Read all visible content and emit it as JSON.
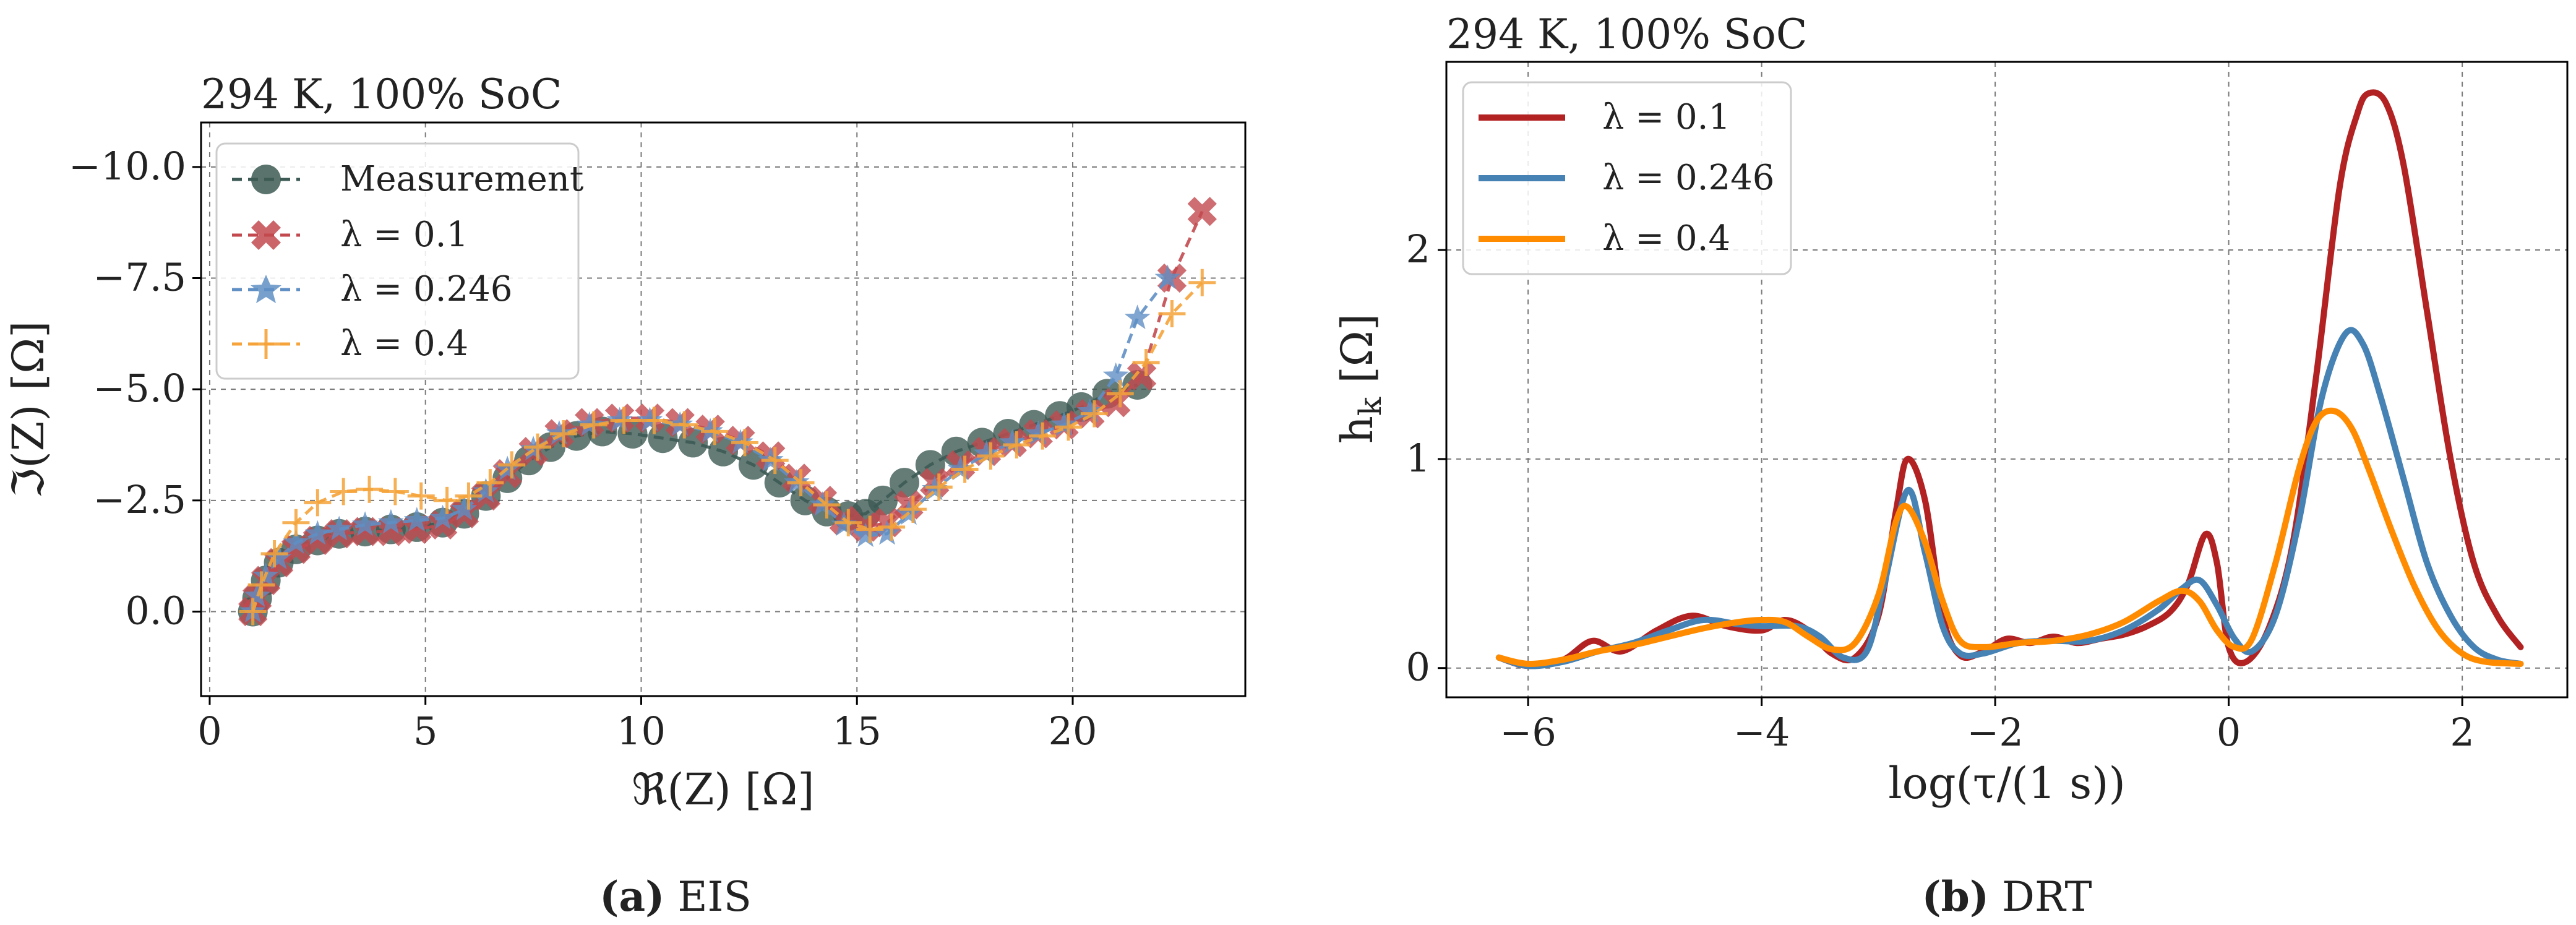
{
  "chart_data": [
    {
      "panel": "a",
      "type": "scatter",
      "title": "294 K, 100% SoC",
      "xlabel": "ℜ(Z) [Ω]",
      "ylabel": "ℑ(Z) [Ω]",
      "xlim": [
        -0.2,
        24.0
      ],
      "ylim": [
        1.9,
        -11.0
      ],
      "y_inverted": true,
      "grid": true,
      "xticks": [
        0,
        5,
        10,
        15,
        20
      ],
      "xtick_labels": [
        "0",
        "5",
        "10",
        "15",
        "20"
      ],
      "yticks": [
        0.0,
        -2.5,
        -5.0,
        -7.5,
        -10.0
      ],
      "ytick_labels": [
        "0.0",
        "−2.5",
        "−5.0",
        "−7.5",
        "−10.0"
      ],
      "legend_position": "upper-left",
      "series": [
        {
          "name": "Measurement",
          "marker": "circle",
          "color": "#3d5a54",
          "x": [
            1.0,
            1.1,
            1.3,
            1.6,
            2.0,
            2.5,
            3.0,
            3.6,
            4.2,
            4.8,
            5.4,
            5.9,
            6.4,
            6.9,
            7.4,
            7.9,
            8.5,
            9.1,
            9.8,
            10.5,
            11.2,
            11.9,
            12.6,
            13.2,
            13.8,
            14.3,
            14.8,
            15.2,
            15.6,
            16.1,
            16.7,
            17.3,
            17.9,
            18.5,
            19.1,
            19.7,
            20.2,
            20.8,
            21.5
          ],
          "y": [
            0.0,
            -0.3,
            -0.7,
            -1.1,
            -1.4,
            -1.6,
            -1.75,
            -1.8,
            -1.85,
            -1.9,
            -2.0,
            -2.2,
            -2.6,
            -3.0,
            -3.4,
            -3.7,
            -3.95,
            -4.05,
            -4.0,
            -3.9,
            -3.8,
            -3.6,
            -3.3,
            -2.9,
            -2.5,
            -2.25,
            -2.15,
            -2.2,
            -2.5,
            -2.9,
            -3.3,
            -3.6,
            -3.8,
            -4.0,
            -4.2,
            -4.4,
            -4.6,
            -4.9,
            -5.1
          ]
        },
        {
          "name": "λ = 0.1",
          "marker": "x",
          "color": "#c24a4f",
          "x": [
            1.0,
            1.1,
            1.3,
            1.6,
            2.0,
            2.5,
            3.0,
            3.6,
            4.2,
            4.8,
            5.4,
            5.9,
            6.4,
            6.9,
            7.5,
            8.1,
            8.8,
            9.5,
            10.2,
            10.9,
            11.6,
            12.3,
            13.0,
            13.6,
            14.2,
            14.7,
            15.2,
            15.7,
            16.2,
            16.8,
            17.4,
            18.0,
            18.6,
            19.2,
            19.8,
            20.4,
            21.0,
            21.6,
            22.3,
            23.0
          ],
          "y": [
            0.0,
            -0.3,
            -0.7,
            -1.1,
            -1.4,
            -1.6,
            -1.75,
            -1.8,
            -1.8,
            -1.85,
            -1.95,
            -2.2,
            -2.6,
            -3.1,
            -3.6,
            -4.0,
            -4.25,
            -4.35,
            -4.35,
            -4.25,
            -4.1,
            -3.85,
            -3.5,
            -3.0,
            -2.5,
            -2.05,
            -1.9,
            -2.0,
            -2.4,
            -2.9,
            -3.3,
            -3.6,
            -3.8,
            -4.0,
            -4.2,
            -4.45,
            -4.7,
            -5.3,
            -7.5,
            -9.0
          ]
        },
        {
          "name": "λ = 0.246",
          "marker": "star",
          "color": "#5f8fc4",
          "x": [
            1.0,
            1.1,
            1.3,
            1.6,
            2.0,
            2.5,
            3.0,
            3.6,
            4.2,
            4.8,
            5.4,
            5.9,
            6.4,
            6.9,
            7.5,
            8.1,
            8.8,
            9.5,
            10.2,
            10.9,
            11.6,
            12.3,
            13.0,
            13.6,
            14.2,
            14.7,
            15.2,
            15.7,
            16.2,
            16.8,
            17.4,
            18.0,
            18.6,
            19.2,
            19.8,
            20.4,
            21.0,
            21.5,
            22.2
          ],
          "y": [
            0.0,
            -0.35,
            -0.8,
            -1.2,
            -1.55,
            -1.75,
            -1.85,
            -1.95,
            -2.0,
            -2.05,
            -2.1,
            -2.3,
            -2.7,
            -3.2,
            -3.65,
            -4.0,
            -4.2,
            -4.3,
            -4.3,
            -4.2,
            -4.05,
            -3.8,
            -3.4,
            -2.9,
            -2.4,
            -1.95,
            -1.7,
            -1.75,
            -2.2,
            -2.75,
            -3.2,
            -3.55,
            -3.8,
            -4.0,
            -4.2,
            -4.5,
            -5.3,
            -6.6,
            -7.5
          ]
        },
        {
          "name": "λ = 0.4",
          "marker": "plus",
          "color": "#f5a33a",
          "x": [
            1.0,
            1.2,
            1.5,
            2.0,
            2.5,
            3.1,
            3.7,
            4.3,
            4.9,
            5.5,
            6.0,
            6.5,
            7.0,
            7.6,
            8.2,
            8.9,
            9.6,
            10.3,
            11.0,
            11.7,
            12.4,
            13.1,
            13.7,
            14.3,
            14.8,
            15.3,
            15.8,
            16.3,
            16.9,
            17.5,
            18.1,
            18.7,
            19.3,
            19.9,
            20.5,
            21.1,
            21.7,
            22.3,
            23.0
          ],
          "y": [
            0.0,
            -0.6,
            -1.3,
            -2.0,
            -2.45,
            -2.7,
            -2.75,
            -2.7,
            -2.6,
            -2.5,
            -2.6,
            -2.9,
            -3.3,
            -3.7,
            -4.0,
            -4.2,
            -4.3,
            -4.3,
            -4.2,
            -4.05,
            -3.8,
            -3.4,
            -2.9,
            -2.4,
            -2.0,
            -1.85,
            -1.9,
            -2.3,
            -2.8,
            -3.2,
            -3.5,
            -3.75,
            -3.95,
            -4.15,
            -4.45,
            -4.9,
            -5.6,
            -6.7,
            -7.4
          ]
        }
      ]
    },
    {
      "panel": "b",
      "type": "line",
      "title": "294 K, 100% SoC",
      "xlabel": "log(τ/(1 s))",
      "ylabel": "h_k [Ω]",
      "xlim": [
        -6.7,
        2.9
      ],
      "ylim": [
        -0.14,
        2.9
      ],
      "grid": true,
      "xticks": [
        -6,
        -4,
        -2,
        0,
        2
      ],
      "xtick_labels": [
        "−6",
        "−4",
        "−2",
        "0",
        "2"
      ],
      "yticks": [
        0,
        1,
        2
      ],
      "ytick_labels": [
        "0",
        "1",
        "2"
      ],
      "legend_position": "upper-left",
      "series": [
        {
          "name": "λ = 0.1",
          "color": "#b22222",
          "x": [
            -6.25,
            -6.0,
            -5.7,
            -5.45,
            -5.2,
            -4.9,
            -4.6,
            -4.3,
            -4.0,
            -3.8,
            -3.6,
            -3.4,
            -3.2,
            -3.0,
            -2.85,
            -2.75,
            -2.6,
            -2.45,
            -2.3,
            -2.1,
            -1.9,
            -1.7,
            -1.5,
            -1.3,
            -1.1,
            -0.9,
            -0.7,
            -0.5,
            -0.35,
            -0.2,
            -0.1,
            0.0,
            0.15,
            0.35,
            0.55,
            0.75,
            0.95,
            1.1,
            1.2,
            1.35,
            1.5,
            1.7,
            1.9,
            2.1,
            2.3,
            2.5
          ],
          "y": [
            0.05,
            0.01,
            0.04,
            0.13,
            0.08,
            0.18,
            0.25,
            0.2,
            0.18,
            0.23,
            0.18,
            0.07,
            0.05,
            0.25,
            0.75,
            1.0,
            0.8,
            0.25,
            0.06,
            0.08,
            0.14,
            0.12,
            0.15,
            0.12,
            0.14,
            0.16,
            0.2,
            0.27,
            0.4,
            0.64,
            0.5,
            0.1,
            0.03,
            0.2,
            0.6,
            1.4,
            2.3,
            2.65,
            2.75,
            2.7,
            2.4,
            1.7,
            1.0,
            0.5,
            0.25,
            0.1
          ]
        },
        {
          "name": "λ = 0.246",
          "color": "#4682b4",
          "x": [
            -6.25,
            -6.0,
            -5.7,
            -5.4,
            -5.1,
            -4.8,
            -4.5,
            -4.2,
            -4.0,
            -3.7,
            -3.5,
            -3.3,
            -3.1,
            -2.95,
            -2.75,
            -2.6,
            -2.45,
            -2.3,
            -2.1,
            -1.8,
            -1.5,
            -1.2,
            -0.9,
            -0.6,
            -0.4,
            -0.25,
            -0.1,
            0.05,
            0.2,
            0.4,
            0.6,
            0.8,
            1.0,
            1.15,
            1.3,
            1.5,
            1.7,
            1.9,
            2.1,
            2.3,
            2.5
          ],
          "y": [
            0.05,
            0.01,
            0.03,
            0.08,
            0.12,
            0.18,
            0.23,
            0.21,
            0.2,
            0.2,
            0.15,
            0.05,
            0.08,
            0.4,
            0.85,
            0.55,
            0.2,
            0.07,
            0.07,
            0.12,
            0.13,
            0.13,
            0.18,
            0.28,
            0.38,
            0.42,
            0.3,
            0.14,
            0.08,
            0.25,
            0.7,
            1.3,
            1.6,
            1.55,
            1.3,
            0.9,
            0.5,
            0.25,
            0.1,
            0.04,
            0.02
          ]
        },
        {
          "name": "λ = 0.4",
          "color": "#ff8c00",
          "x": [
            -6.25,
            -6.0,
            -5.7,
            -5.4,
            -5.1,
            -4.8,
            -4.5,
            -4.2,
            -4.0,
            -3.8,
            -3.6,
            -3.4,
            -3.2,
            -3.0,
            -2.85,
            -2.75,
            -2.6,
            -2.45,
            -2.3,
            -2.1,
            -1.8,
            -1.5,
            -1.2,
            -0.9,
            -0.6,
            -0.4,
            -0.25,
            -0.1,
            0.05,
            0.2,
            0.4,
            0.6,
            0.75,
            0.9,
            1.05,
            1.2,
            1.4,
            1.6,
            1.8,
            2.0,
            2.2,
            2.5
          ],
          "y": [
            0.05,
            0.02,
            0.04,
            0.08,
            0.11,
            0.15,
            0.19,
            0.22,
            0.23,
            0.22,
            0.15,
            0.09,
            0.12,
            0.35,
            0.7,
            0.77,
            0.6,
            0.32,
            0.13,
            0.1,
            0.12,
            0.13,
            0.16,
            0.22,
            0.32,
            0.37,
            0.32,
            0.18,
            0.1,
            0.14,
            0.5,
            0.95,
            1.18,
            1.23,
            1.15,
            0.95,
            0.65,
            0.38,
            0.18,
            0.07,
            0.03,
            0.02
          ]
        }
      ]
    }
  ],
  "captions": {
    "a": {
      "label": "(a)",
      "text": "EIS"
    },
    "b": {
      "label": "(b)",
      "text": "DRT"
    }
  }
}
